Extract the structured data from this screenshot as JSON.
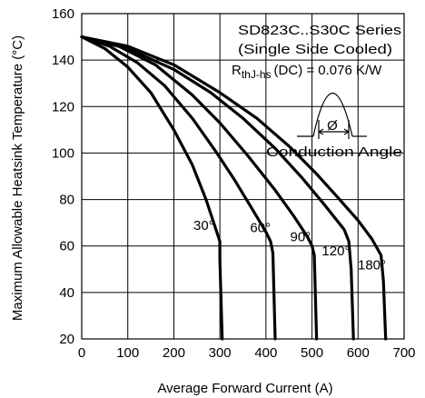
{
  "chart_data": {
    "type": "line",
    "xlabel": "Average Forward Current (A)",
    "ylabel": "Maximum Allowable Heatsink Temperature (°C)",
    "xlim": [
      0,
      700
    ],
    "ylim": [
      20,
      160
    ],
    "xticks": [
      0,
      100,
      200,
      300,
      400,
      500,
      600,
      700
    ],
    "yticks": [
      20,
      40,
      60,
      80,
      100,
      120,
      140,
      160
    ],
    "grid": true,
    "annotations": {
      "series_title": "SD823C..S30C Series",
      "cooling": "(Single Side Cooled)",
      "rth_main": "R",
      "rth_sub": "thJ-hs",
      "rth_value": "(DC) = 0.076 K/W",
      "phi_symbol": "Ø",
      "conduction_label": "Conduction Angle"
    },
    "series": [
      {
        "name": "30°",
        "x": [
          0,
          50,
          100,
          150,
          200,
          240,
          270,
          300,
          300,
          305
        ],
        "y": [
          150,
          145,
          137,
          126,
          110,
          95,
          80,
          62,
          54,
          20
        ]
      },
      {
        "name": "60°",
        "x": [
          0,
          60,
          120,
          180,
          240,
          290,
          330,
          370,
          400,
          410,
          415,
          420
        ],
        "y": [
          150,
          146,
          139,
          129,
          115,
          101,
          89,
          76,
          66,
          62,
          57,
          20
        ]
      },
      {
        "name": "90°",
        "x": [
          0,
          80,
          160,
          240,
          300,
          360,
          420,
          460,
          490,
          500,
          505,
          510
        ],
        "y": [
          150,
          146,
          138,
          125,
          113,
          99,
          84,
          73,
          64,
          60,
          56,
          20
        ]
      },
      {
        "name": "120°",
        "x": [
          0,
          100,
          200,
          280,
          350,
          420,
          480,
          530,
          570,
          580,
          585,
          590
        ],
        "y": [
          150,
          145,
          136,
          126,
          115,
          102,
          89,
          77,
          67,
          62,
          50,
          20
        ]
      },
      {
        "name": "180°",
        "x": [
          0,
          100,
          200,
          300,
          380,
          450,
          510,
          560,
          600,
          630,
          650,
          655,
          660
        ],
        "y": [
          150,
          146,
          138,
          126,
          115,
          103,
          91,
          80,
          71,
          63,
          56,
          45,
          20
        ]
      }
    ],
    "labels": [
      {
        "text": "30°",
        "x": 265,
        "y": 67
      },
      {
        "text": "60°",
        "x": 388,
        "y": 66
      },
      {
        "text": "90°",
        "x": 475,
        "y": 62
      },
      {
        "text": "120°",
        "x": 552,
        "y": 56
      },
      {
        "text": "180°",
        "x": 630,
        "y": 50
      }
    ]
  }
}
